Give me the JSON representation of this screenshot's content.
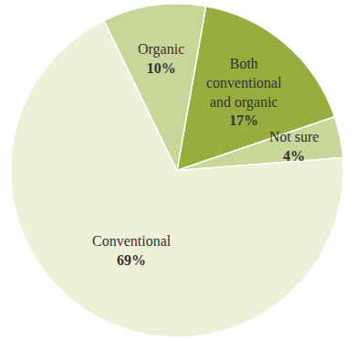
{
  "chart_data": {
    "type": "pie",
    "categories": [
      "Both conventional and organic",
      "Not sure",
      "Conventional",
      "Organic"
    ],
    "values": [
      17,
      4,
      69,
      10
    ],
    "value_labels": [
      "17%",
      "4%",
      "69%",
      "10%"
    ],
    "colors": [
      "#97ad3e",
      "#c9d69a",
      "#eef0d8",
      "#c9d69a"
    ],
    "data_labels": true
  }
}
